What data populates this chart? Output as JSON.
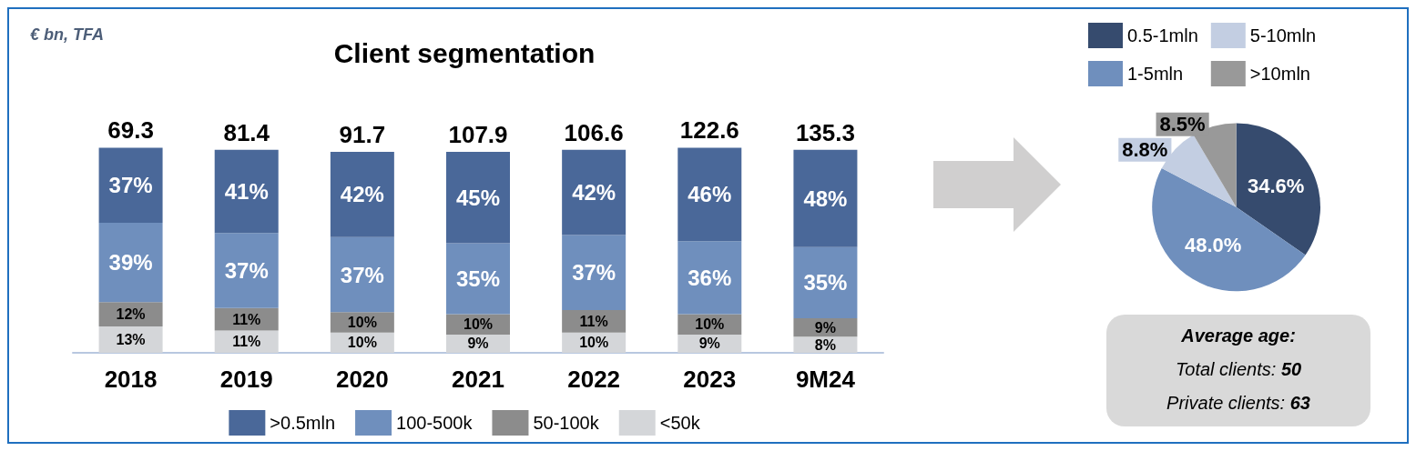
{
  "chart_data": [
    {
      "type": "bar",
      "title": "Client segmentation",
      "subtitle": "€ bn, TFA",
      "stacked": true,
      "legend": "bottom",
      "categories": [
        "2018",
        "2019",
        "2020",
        "2021",
        "2022",
        "2023",
        "9M24"
      ],
      "series": [
        {
          "name": "<50k",
          "color": "#d4d6d9",
          "values": [
            13,
            11,
            10,
            9,
            10,
            9,
            8
          ],
          "value_labels": [
            "13%",
            "11%",
            "10%",
            "9%",
            "10%",
            "9%",
            "8%"
          ]
        },
        {
          "name": "50-100k",
          "color": "#8c8c8c",
          "values": [
            12,
            11,
            10,
            10,
            11,
            10,
            9
          ],
          "value_labels": [
            "12%",
            "11%",
            "10%",
            "10%",
            "11%",
            "10%",
            "9%"
          ]
        },
        {
          "name": "100-500k",
          "color": "#6f8fbd",
          "values": [
            39,
            37,
            37,
            35,
            37,
            36,
            35
          ],
          "value_labels": [
            "39%",
            "37%",
            "37%",
            "35%",
            "37%",
            "36%",
            "35%"
          ]
        },
        {
          "name": ">0.5mln",
          "color": "#4a6899",
          "values": [
            37,
            41,
            42,
            45,
            42,
            46,
            48
          ],
          "value_labels": [
            "37%",
            "41%",
            "42%",
            "45%",
            "42%",
            "46%",
            "48%"
          ]
        }
      ],
      "annotations": [
        "69.3",
        "81.4",
        "91.7",
        "107.9",
        "106.6",
        "122.6",
        "135.3"
      ]
    },
    {
      "type": "pie",
      "legend": "top",
      "categories": [
        "0.5-1mln",
        "1-5mln",
        "5-10mln",
        ">10mln"
      ],
      "values": [
        34.6,
        48.0,
        8.8,
        8.5
      ],
      "colors": [
        "#364b6e",
        "#6f8fbd",
        "#c3cee2",
        "#999999"
      ],
      "value_labels": [
        "34.6%",
        "48.0%",
        "8.8%",
        "8.5%"
      ]
    },
    {
      "type": "other",
      "title": "Average age:",
      "annotations": [
        "Total clients: 50",
        "Private clients: 63"
      ]
    }
  ]
}
